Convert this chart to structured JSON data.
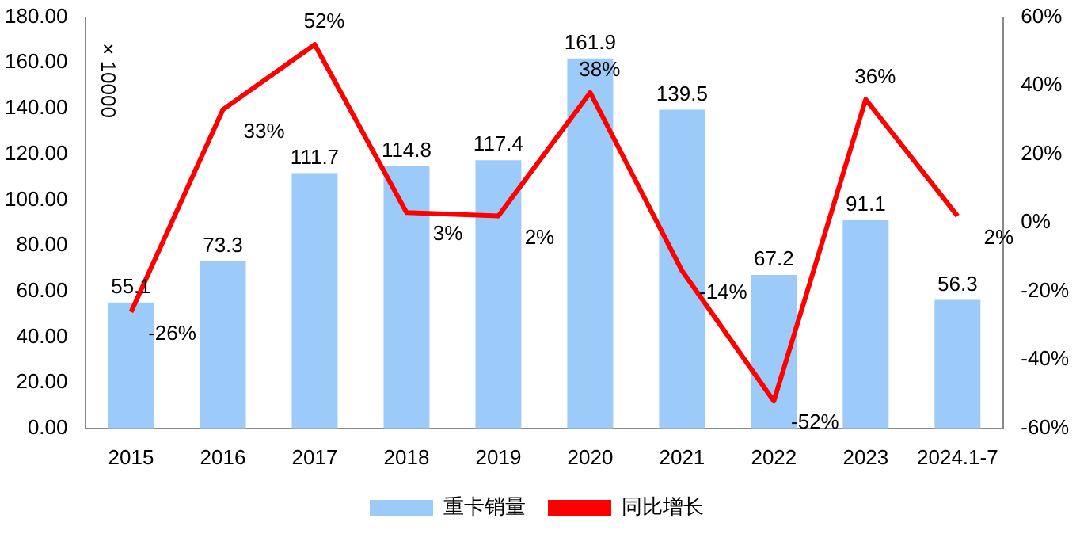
{
  "chart_data": {
    "type": "bar",
    "ylabel": "× 10000",
    "categories": [
      "2015",
      "2016",
      "2017",
      "2018",
      "2019",
      "2020",
      "2021",
      "2022",
      "2023",
      "2024.1-7"
    ],
    "series": [
      {
        "name": "重卡销量",
        "color": "#9dcbf9",
        "values": [
          55.1,
          73.3,
          111.7,
          114.8,
          117.4,
          161.9,
          139.5,
          67.2,
          91.1,
          56.3
        ],
        "value_labels": [
          "55.1",
          "73.3",
          "111.7",
          "114.8",
          "117.4",
          "161.9",
          "139.5",
          "67.2",
          "91.1",
          "56.3"
        ]
      },
      {
        "name": "同比增长",
        "type": "line",
        "axis": "y2",
        "color": "#ff0000",
        "marker": "none",
        "line_style": "solid",
        "values": [
          -26,
          33,
          52,
          3,
          2,
          38,
          -14,
          -52,
          36,
          2
        ],
        "value_labels": [
          "-26%",
          "33%",
          "52%",
          "3%",
          "2%",
          "38%",
          "-14%",
          "-52%",
          "36%",
          "2%"
        ]
      }
    ],
    "ylim": [
      0,
      180
    ],
    "yticks": [
      {
        "value": 0,
        "label": "0.00"
      },
      {
        "value": 20,
        "label": "20.00"
      },
      {
        "value": 40,
        "label": "40.00"
      },
      {
        "value": 60,
        "label": "60.00"
      },
      {
        "value": 80,
        "label": "80.00"
      },
      {
        "value": 100,
        "label": "100.00"
      },
      {
        "value": 120,
        "label": "120.00"
      },
      {
        "value": 140,
        "label": "140.00"
      },
      {
        "value": 160,
        "label": "160.00"
      },
      {
        "value": 180,
        "label": "180.00"
      }
    ],
    "y2lim": [
      -60,
      60
    ],
    "y2ticks": [
      {
        "value": -60,
        "label": "-60%"
      },
      {
        "value": -40,
        "label": "-40%"
      },
      {
        "value": -20,
        "label": "-20%"
      },
      {
        "value": 0,
        "label": "0%"
      },
      {
        "value": 20,
        "label": "20%"
      },
      {
        "value": 40,
        "label": "40%"
      },
      {
        "value": 60,
        "label": "60%"
      }
    ],
    "grid": false,
    "legend": "bottom"
  }
}
